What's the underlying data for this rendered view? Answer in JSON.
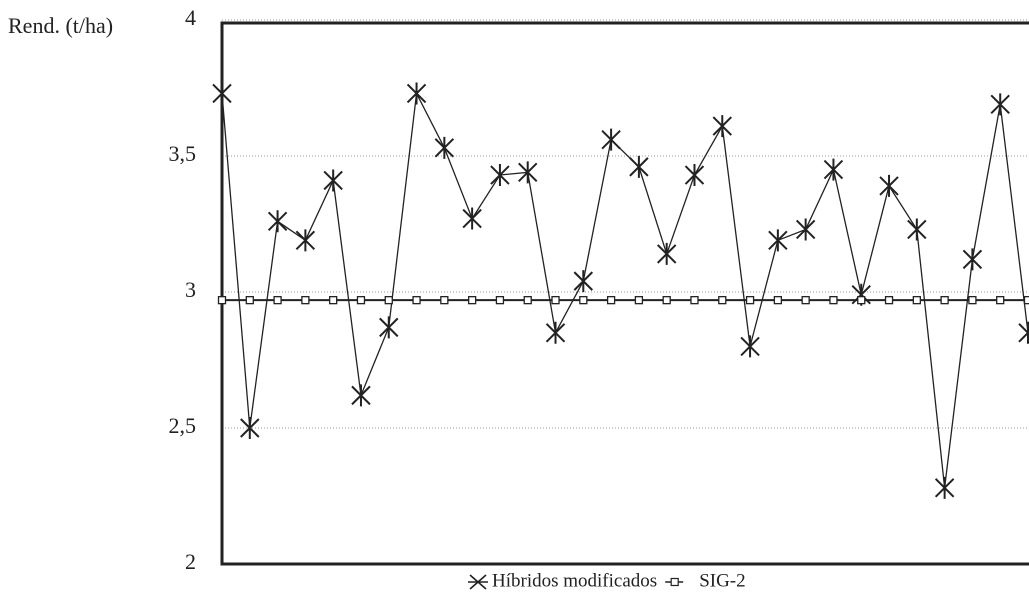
{
  "chart_data": {
    "type": "line",
    "y_label": "Rend. (t/ha)",
    "categories": [
      null,
      null,
      null,
      null,
      null,
      null,
      null,
      null,
      null,
      null,
      null,
      null,
      null,
      null,
      null,
      null,
      null,
      null,
      null,
      null,
      null,
      null,
      null,
      null,
      null,
      null,
      null,
      null,
      null,
      null
    ],
    "series": [
      {
        "name": "Híbridos modificados",
        "color": "#222222",
        "marker": "x",
        "values": [
          3.73,
          2.5,
          3.26,
          3.19,
          3.41,
          2.62,
          2.87,
          3.73,
          3.53,
          3.27,
          3.43,
          3.44,
          2.85,
          3.04,
          3.56,
          3.46,
          3.14,
          3.43,
          3.61,
          2.8,
          3.19,
          3.23,
          3.45,
          2.99,
          3.39,
          3.23,
          2.28,
          3.12,
          3.69,
          2.85
        ]
      },
      {
        "name": "SIG-2",
        "color": "#222222",
        "marker": "square",
        "values": [
          2.97,
          2.97,
          2.97,
          2.97,
          2.97,
          2.97,
          2.97,
          2.97,
          2.97,
          2.97,
          2.97,
          2.97,
          2.97,
          2.97,
          2.97,
          2.97,
          2.97,
          2.97,
          2.97,
          2.97,
          2.97,
          2.97,
          2.97,
          2.97,
          2.97,
          2.97,
          2.97,
          2.97,
          2.97,
          2.97
        ]
      }
    ],
    "ylim": [
      2,
      4
    ],
    "yticks": [
      2,
      {
        "value": 2.5,
        "label": "2,5"
      },
      3,
      {
        "value": 3.5,
        "label": "3,5"
      },
      4
    ],
    "grid": true,
    "legend": "bottom"
  }
}
